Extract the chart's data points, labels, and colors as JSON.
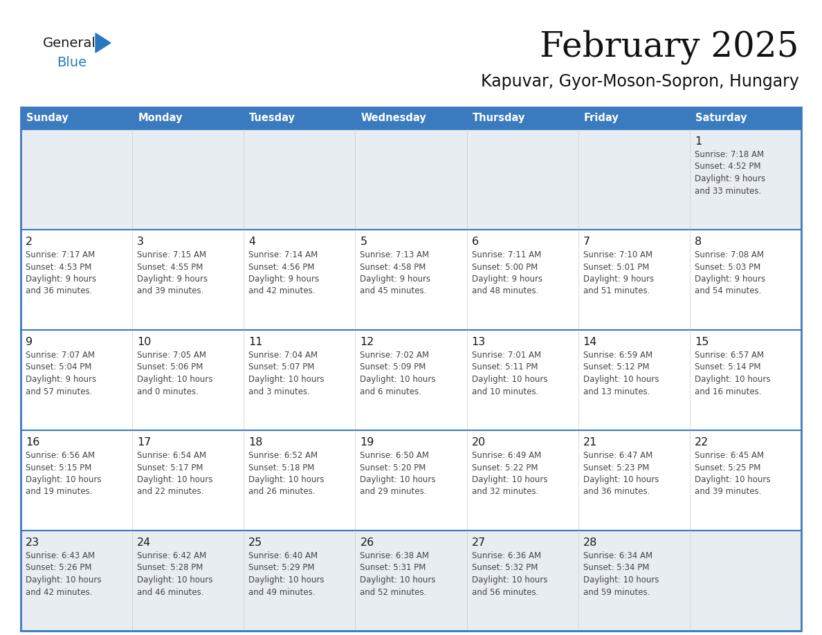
{
  "title": "February 2025",
  "subtitle": "Kapuvar, Gyor-Moson-Sopron, Hungary",
  "header_color": "#3a7abf",
  "header_text_color": "#ffffff",
  "cell_bg_white": "#ffffff",
  "cell_bg_gray": "#e8edf2",
  "border_color": "#3a7abf",
  "text_color": "#444444",
  "day_number_color": "#1a1a1a",
  "days_of_week": [
    "Sunday",
    "Monday",
    "Tuesday",
    "Wednesday",
    "Thursday",
    "Friday",
    "Saturday"
  ],
  "logo_color1": "#1a1a1a",
  "logo_color2": "#2878c0",
  "calendar_data": [
    [
      {
        "day": "",
        "info": "",
        "gray": true
      },
      {
        "day": "",
        "info": "",
        "gray": true
      },
      {
        "day": "",
        "info": "",
        "gray": true
      },
      {
        "day": "",
        "info": "",
        "gray": true
      },
      {
        "day": "",
        "info": "",
        "gray": true
      },
      {
        "day": "",
        "info": "",
        "gray": true
      },
      {
        "day": "1",
        "info": "Sunrise: 7:18 AM\nSunset: 4:52 PM\nDaylight: 9 hours\nand 33 minutes.",
        "gray": true
      }
    ],
    [
      {
        "day": "2",
        "info": "Sunrise: 7:17 AM\nSunset: 4:53 PM\nDaylight: 9 hours\nand 36 minutes.",
        "gray": false
      },
      {
        "day": "3",
        "info": "Sunrise: 7:15 AM\nSunset: 4:55 PM\nDaylight: 9 hours\nand 39 minutes.",
        "gray": false
      },
      {
        "day": "4",
        "info": "Sunrise: 7:14 AM\nSunset: 4:56 PM\nDaylight: 9 hours\nand 42 minutes.",
        "gray": false
      },
      {
        "day": "5",
        "info": "Sunrise: 7:13 AM\nSunset: 4:58 PM\nDaylight: 9 hours\nand 45 minutes.",
        "gray": false
      },
      {
        "day": "6",
        "info": "Sunrise: 7:11 AM\nSunset: 5:00 PM\nDaylight: 9 hours\nand 48 minutes.",
        "gray": false
      },
      {
        "day": "7",
        "info": "Sunrise: 7:10 AM\nSunset: 5:01 PM\nDaylight: 9 hours\nand 51 minutes.",
        "gray": false
      },
      {
        "day": "8",
        "info": "Sunrise: 7:08 AM\nSunset: 5:03 PM\nDaylight: 9 hours\nand 54 minutes.",
        "gray": false
      }
    ],
    [
      {
        "day": "9",
        "info": "Sunrise: 7:07 AM\nSunset: 5:04 PM\nDaylight: 9 hours\nand 57 minutes.",
        "gray": false
      },
      {
        "day": "10",
        "info": "Sunrise: 7:05 AM\nSunset: 5:06 PM\nDaylight: 10 hours\nand 0 minutes.",
        "gray": false
      },
      {
        "day": "11",
        "info": "Sunrise: 7:04 AM\nSunset: 5:07 PM\nDaylight: 10 hours\nand 3 minutes.",
        "gray": false
      },
      {
        "day": "12",
        "info": "Sunrise: 7:02 AM\nSunset: 5:09 PM\nDaylight: 10 hours\nand 6 minutes.",
        "gray": false
      },
      {
        "day": "13",
        "info": "Sunrise: 7:01 AM\nSunset: 5:11 PM\nDaylight: 10 hours\nand 10 minutes.",
        "gray": false
      },
      {
        "day": "14",
        "info": "Sunrise: 6:59 AM\nSunset: 5:12 PM\nDaylight: 10 hours\nand 13 minutes.",
        "gray": false
      },
      {
        "day": "15",
        "info": "Sunrise: 6:57 AM\nSunset: 5:14 PM\nDaylight: 10 hours\nand 16 minutes.",
        "gray": false
      }
    ],
    [
      {
        "day": "16",
        "info": "Sunrise: 6:56 AM\nSunset: 5:15 PM\nDaylight: 10 hours\nand 19 minutes.",
        "gray": false
      },
      {
        "day": "17",
        "info": "Sunrise: 6:54 AM\nSunset: 5:17 PM\nDaylight: 10 hours\nand 22 minutes.",
        "gray": false
      },
      {
        "day": "18",
        "info": "Sunrise: 6:52 AM\nSunset: 5:18 PM\nDaylight: 10 hours\nand 26 minutes.",
        "gray": false
      },
      {
        "day": "19",
        "info": "Sunrise: 6:50 AM\nSunset: 5:20 PM\nDaylight: 10 hours\nand 29 minutes.",
        "gray": false
      },
      {
        "day": "20",
        "info": "Sunrise: 6:49 AM\nSunset: 5:22 PM\nDaylight: 10 hours\nand 32 minutes.",
        "gray": false
      },
      {
        "day": "21",
        "info": "Sunrise: 6:47 AM\nSunset: 5:23 PM\nDaylight: 10 hours\nand 36 minutes.",
        "gray": false
      },
      {
        "day": "22",
        "info": "Sunrise: 6:45 AM\nSunset: 5:25 PM\nDaylight: 10 hours\nand 39 minutes.",
        "gray": false
      }
    ],
    [
      {
        "day": "23",
        "info": "Sunrise: 6:43 AM\nSunset: 5:26 PM\nDaylight: 10 hours\nand 42 minutes.",
        "gray": true
      },
      {
        "day": "24",
        "info": "Sunrise: 6:42 AM\nSunset: 5:28 PM\nDaylight: 10 hours\nand 46 minutes.",
        "gray": true
      },
      {
        "day": "25",
        "info": "Sunrise: 6:40 AM\nSunset: 5:29 PM\nDaylight: 10 hours\nand 49 minutes.",
        "gray": true
      },
      {
        "day": "26",
        "info": "Sunrise: 6:38 AM\nSunset: 5:31 PM\nDaylight: 10 hours\nand 52 minutes.",
        "gray": true
      },
      {
        "day": "27",
        "info": "Sunrise: 6:36 AM\nSunset: 5:32 PM\nDaylight: 10 hours\nand 56 minutes.",
        "gray": true
      },
      {
        "day": "28",
        "info": "Sunrise: 6:34 AM\nSunset: 5:34 PM\nDaylight: 10 hours\nand 59 minutes.",
        "gray": true
      },
      {
        "day": "",
        "info": "",
        "gray": true
      }
    ]
  ]
}
